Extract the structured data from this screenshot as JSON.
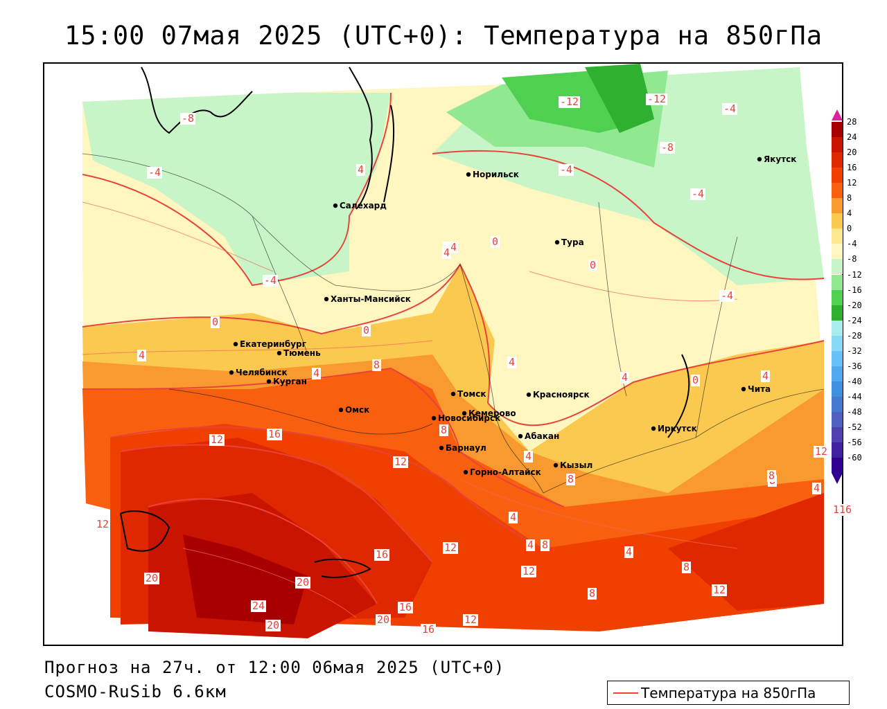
{
  "title": "15:00 07мая 2025 (UTC+0): Температура на 850гПа",
  "footer": {
    "forecast": "Прогноз на 27ч. от 12:00 06мая 2025 (UTC+0)",
    "model": "COSMO-RuSib 6.6км"
  },
  "legend": {
    "line_label": "Температура на 850гПа",
    "line_color": "#e8433a"
  },
  "colorbar": {
    "labels": [
      "28",
      "24",
      "20",
      "16",
      "12",
      "8",
      "4",
      "0",
      "-4",
      "-8",
      "-12",
      "-16",
      "-20",
      "-24",
      "-28",
      "-32",
      "-36",
      "-40",
      "-44",
      "-48",
      "-52",
      "-56",
      "-60"
    ],
    "colors": [
      "#a80000",
      "#c81400",
      "#e02800",
      "#f04000",
      "#f86010",
      "#f89a30",
      "#fbc850",
      "#fde890",
      "#fff6c0",
      "#c8f5c8",
      "#90e890",
      "#50d050",
      "#30b030",
      "#a8ecf0",
      "#88d8f8",
      "#68c0f8",
      "#50a8f0",
      "#4090e0",
      "#4878d0",
      "#5060c0",
      "#5040b0",
      "#4020a0",
      "#300090"
    ]
  },
  "cities": [
    {
      "name": "Норильск",
      "icon": "city-dot"
    },
    {
      "name": "Якутск",
      "icon": "city-dot"
    },
    {
      "name": "Салехард",
      "icon": "city-dot"
    },
    {
      "name": "Тура",
      "icon": "city-dot"
    },
    {
      "name": "Ханты-Мансийск",
      "icon": "city-dot"
    },
    {
      "name": "Екатеринбург",
      "icon": "city-dot"
    },
    {
      "name": "Тюмень",
      "icon": "city-dot"
    },
    {
      "name": "Челябинск",
      "icon": "city-dot"
    },
    {
      "name": "Курган",
      "icon": "city-dot"
    },
    {
      "name": "Омск",
      "icon": "city-dot"
    },
    {
      "name": "Новосибирск",
      "icon": "city-dot"
    },
    {
      "name": "Томск",
      "icon": "city-dot"
    },
    {
      "name": "Кемерово",
      "icon": "city-dot"
    },
    {
      "name": "Красноярск",
      "icon": "city-dot"
    },
    {
      "name": "Абакан",
      "icon": "city-dot"
    },
    {
      "name": "Барнаул",
      "icon": "city-dot"
    },
    {
      "name": "Горно-Алтайск",
      "icon": "city-dot"
    },
    {
      "name": "Кызыл",
      "icon": "city-dot"
    },
    {
      "name": "Иркутск",
      "icon": "city-dot"
    },
    {
      "name": "Чита",
      "icon": "city-dot"
    }
  ],
  "isotherm_labels": [
    "-8",
    "-4",
    "-12",
    "-12",
    "-4",
    "-8",
    "-4",
    "-4",
    "-4",
    "4",
    "-4",
    "0",
    "4",
    "0",
    "-4",
    "0",
    "0",
    "4",
    "4",
    "8",
    "4",
    "4",
    "0",
    "4",
    "8",
    "12",
    "16",
    "12",
    "12",
    "4",
    "8",
    "4",
    "12",
    "8",
    "8",
    "116",
    "12",
    "16",
    "20",
    "20",
    "24",
    "16",
    "20",
    "16",
    "4",
    "8",
    "4",
    "8",
    "12",
    "8",
    "12",
    "12",
    "20",
    "4"
  ],
  "colors": {
    "isotherm": "#e8433a",
    "label_bg": "#ffffff"
  }
}
